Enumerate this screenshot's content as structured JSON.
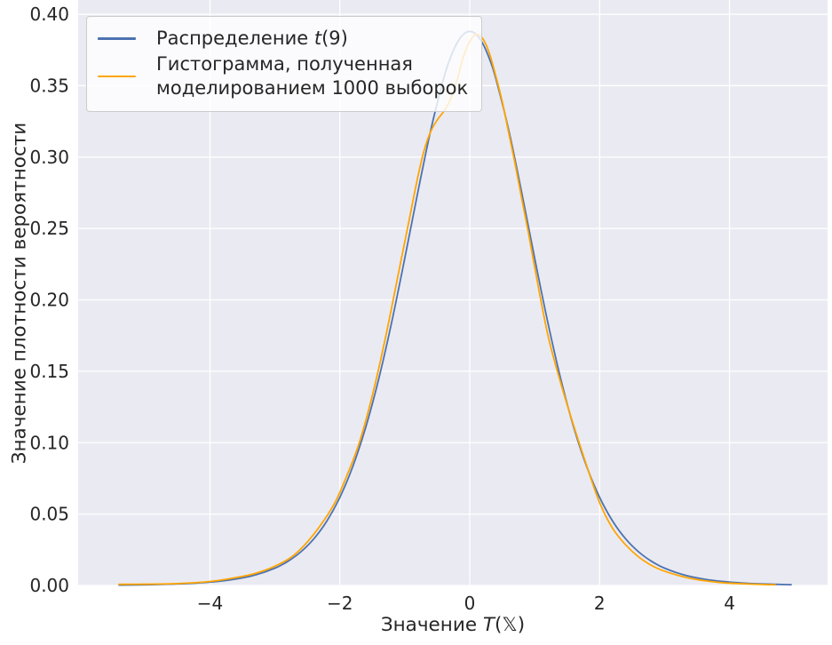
{
  "figure": {
    "background": "#ffffff",
    "plot_background": "#eaeaf2",
    "grid_color": "#ffffff",
    "text_color": "#262626"
  },
  "chart_data": {
    "type": "line",
    "title": "",
    "xlabel": "Значение T(𝕏)",
    "xlabel_parts": {
      "prefix": "Значение ",
      "var": "T",
      "suffix": "(𝕏)"
    },
    "ylabel": "Значение плотности вероятности",
    "xlim": [
      -6.03,
      5.51
    ],
    "ylim": [
      0,
      0.41
    ],
    "grid": true,
    "legend_position": "upper left",
    "xticks": {
      "values": [
        -4,
        -2,
        0,
        2,
        4
      ],
      "labels": [
        "−4",
        "−2",
        "0",
        "2",
        "4"
      ]
    },
    "yticks": {
      "values": [
        0,
        0.05,
        0.1,
        0.15,
        0.2,
        0.25,
        0.3,
        0.35,
        0.4
      ],
      "labels": [
        "0.00",
        "0.05",
        "0.10",
        "0.15",
        "0.20",
        "0.25",
        "0.30",
        "0.35",
        "0.40"
      ]
    },
    "series": [
      {
        "name": "Распределение t(9)",
        "color": "#4c72b0",
        "x": [
          -5.4,
          -5.0,
          -4.5,
          -4.0,
          -3.6,
          -3.3,
          -3.0,
          -2.8,
          -2.6,
          -2.4,
          -2.2,
          -2.0,
          -1.8,
          -1.6,
          -1.4,
          -1.2,
          -1.0,
          -0.8,
          -0.6,
          -0.4,
          -0.3,
          -0.2,
          -0.1,
          0,
          0.1,
          0.2,
          0.3,
          0.4,
          0.6,
          0.8,
          1.0,
          1.2,
          1.4,
          1.6,
          1.8,
          2.0,
          2.2,
          2.4,
          2.6,
          2.8,
          3.0,
          3.3,
          3.6,
          3.9,
          4.2,
          4.5,
          4.95
        ],
        "y": [
          0.00028,
          0.0005,
          0.00107,
          0.00235,
          0.00449,
          0.00736,
          0.01213,
          0.01691,
          0.02356,
          0.03269,
          0.04512,
          0.06171,
          0.08342,
          0.11099,
          0.14489,
          0.18475,
          0.22913,
          0.27523,
          0.31893,
          0.35531,
          0.3692,
          0.37953,
          0.38588,
          0.38803,
          0.38588,
          0.37953,
          0.3692,
          0.35531,
          0.31893,
          0.27523,
          0.22913,
          0.18475,
          0.14489,
          0.11099,
          0.08342,
          0.06171,
          0.04512,
          0.03269,
          0.02356,
          0.01691,
          0.01213,
          0.00736,
          0.00449,
          0.00276,
          0.00171,
          0.00107,
          0.00054
        ]
      },
      {
        "name": "Гистограмма, полученная моделированием 1000 выборок",
        "color": "#ffa500",
        "x": [
          -5.4,
          -5.0,
          -4.5,
          -4.0,
          -3.6,
          -3.3,
          -3.0,
          -2.7,
          -2.4,
          -2.1,
          -1.9,
          -1.7,
          -1.5,
          -1.3,
          -1.1,
          -0.95,
          -0.8,
          -0.7,
          -0.6,
          -0.5,
          -0.4,
          -0.3,
          -0.2,
          -0.1,
          0,
          0.1,
          0.2,
          0.3,
          0.4,
          0.5,
          0.6,
          0.7,
          0.8,
          0.9,
          1.0,
          1.2,
          1.4,
          1.6,
          1.8,
          2.0,
          2.2,
          2.4,
          2.6,
          2.8,
          3.0,
          3.3,
          3.6,
          3.9,
          4.2,
          4.5,
          4.7
        ],
        "y": [
          0.0008,
          0.0009,
          0.0013,
          0.0028,
          0.0055,
          0.0085,
          0.0135,
          0.0215,
          0.036,
          0.056,
          0.076,
          0.1,
          0.133,
          0.173,
          0.218,
          0.252,
          0.286,
          0.305,
          0.318,
          0.326,
          0.332,
          0.34,
          0.353,
          0.37,
          0.381,
          0.386,
          0.383,
          0.373,
          0.357,
          0.339,
          0.317,
          0.295,
          0.271,
          0.248,
          0.223,
          0.176,
          0.142,
          0.112,
          0.084,
          0.058,
          0.04,
          0.0285,
          0.02,
          0.014,
          0.01,
          0.006,
          0.0034,
          0.0019,
          0.0012,
          0.0007,
          0.0005
        ]
      }
    ]
  },
  "legend": {
    "item1": {
      "prefix": "Распределение ",
      "var": "t",
      "suffix": "(9)"
    },
    "item2_line1": "Гистограмма, полученная",
    "item2_line2": "моделированием 1000 выборок"
  }
}
